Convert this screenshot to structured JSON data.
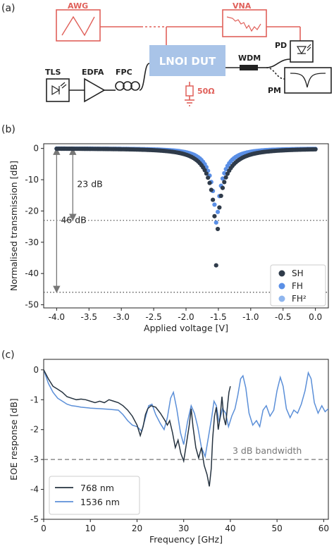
{
  "panels": {
    "a": "(a)",
    "b": "(b)",
    "c": "(c)"
  },
  "schematic": {
    "awg": "AWG",
    "vna": "VNA",
    "dut": "LNOI DUT",
    "tls": "TLS",
    "edfa": "EDFA",
    "fpc": "FPC",
    "wdm": "WDM",
    "pd": "PD",
    "pm": "PM",
    "load": "50Ω",
    "colors": {
      "rf": "#e0605a",
      "dut": "#a9c4e8",
      "optical": "#222222"
    }
  },
  "chart_data": [
    {
      "type": "scatter",
      "xlabel": "Applied voltage [V]",
      "ylabel": "Normalised transmission [dB]",
      "xlim": [
        -4.2,
        0.2
      ],
      "ylim": [
        -51,
        1.5
      ],
      "xticks": [
        "-4.0",
        "-3.5",
        "-3.0",
        "-2.5",
        "-2.0",
        "-1.5",
        "-1.0",
        "-0.5",
        "0.0"
      ],
      "yticks": [
        "0",
        "-10",
        "-20",
        "-30",
        "-40",
        "-50"
      ],
      "legend_position": "bottom-right",
      "series": [
        {
          "name": "SH",
          "color": "#2f3b4a",
          "params": {
            "v0": -1.53,
            "depth_db": 47,
            "g_left": 0.36,
            "g_right": 0.4,
            "v_start": -4.0,
            "v_end": 0.0,
            "n": 160
          }
        },
        {
          "name": "FH",
          "color": "#5a8fe6",
          "params": {
            "v0": -1.53,
            "depth_db": 24,
            "g_left": 0.27,
            "g_right": 0.28,
            "v_start": -4.0,
            "v_end": 0.0,
            "n": 160
          }
        },
        {
          "name": "FH²",
          "color": "#8fb6ee"
        }
      ],
      "annotations": [
        {
          "text": "23 dB",
          "from": 0,
          "to": -23,
          "x": -3.75
        },
        {
          "text": "46 dB",
          "from": 0,
          "to": -46,
          "x": -4.0
        }
      ],
      "reference_lines": [
        -23,
        -46
      ]
    },
    {
      "type": "line",
      "xlabel": "Frequency [GHz]",
      "ylabel": "EOE response [dB]",
      "xlim": [
        0,
        61
      ],
      "ylim": [
        -5,
        0.35
      ],
      "xticks": [
        "0",
        "10",
        "20",
        "30",
        "40",
        "50",
        "60"
      ],
      "yticks": [
        "0",
        "-1",
        "-2",
        "-3",
        "-4",
        "-5"
      ],
      "legend_position": "bottom-left",
      "reference_line": {
        "y": -3,
        "label": "3 dB bandwidth"
      },
      "series": [
        {
          "name": "768 nm",
          "color": "#263340",
          "points": [
            [
              0,
              0
            ],
            [
              1,
              -0.3
            ],
            [
              2,
              -0.55
            ],
            [
              3,
              -0.65
            ],
            [
              4,
              -0.75
            ],
            [
              5,
              -0.9
            ],
            [
              6,
              -0.95
            ],
            [
              7,
              -1.0
            ],
            [
              8,
              -0.98
            ],
            [
              9,
              -1.0
            ],
            [
              10,
              -1.05
            ],
            [
              11,
              -1.1
            ],
            [
              12,
              -1.05
            ],
            [
              13,
              -1.1
            ],
            [
              14,
              -1.0
            ],
            [
              15,
              -1.05
            ],
            [
              16,
              -1.1
            ],
            [
              17,
              -1.2
            ],
            [
              18,
              -1.35
            ],
            [
              19,
              -1.55
            ],
            [
              20,
              -1.85
            ],
            [
              20.7,
              -2.2
            ],
            [
              21.3,
              -1.9
            ],
            [
              21.8,
              -1.5
            ],
            [
              22.3,
              -1.3
            ],
            [
              23,
              -1.2
            ],
            [
              24,
              -1.25
            ],
            [
              25,
              -1.45
            ],
            [
              26,
              -1.7
            ],
            [
              26.5,
              -1.85
            ],
            [
              27,
              -1.7
            ],
            [
              27.6,
              -2.1
            ],
            [
              28.2,
              -2.6
            ],
            [
              28.8,
              -2.35
            ],
            [
              29.4,
              -2.8
            ],
            [
              30,
              -3.05
            ],
            [
              30.6,
              -2.45
            ],
            [
              31.2,
              -1.85
            ],
            [
              31.6,
              -1.3
            ],
            [
              32,
              -1.9
            ],
            [
              32.6,
              -2.6
            ],
            [
              33.2,
              -2.95
            ],
            [
              33.8,
              -2.6
            ],
            [
              34.4,
              -3.2
            ],
            [
              35,
              -3.5
            ],
            [
              35.5,
              -3.9
            ],
            [
              35.9,
              -3.3
            ],
            [
              36.2,
              -2.3
            ],
            [
              36.6,
              -1.55
            ],
            [
              37,
              -1.25
            ],
            [
              37.4,
              -2.0
            ],
            [
              37.8,
              -1.6
            ],
            [
              38.2,
              -0.9
            ],
            [
              38.6,
              -1.6
            ],
            [
              39,
              -1.85
            ],
            [
              39.4,
              -1.2
            ],
            [
              39.7,
              -0.75
            ],
            [
              40,
              -0.55
            ]
          ]
        },
        {
          "name": "1536 nm",
          "color": "#5b8fd8",
          "points": [
            [
              0,
              0
            ],
            [
              1,
              -0.45
            ],
            [
              2,
              -0.75
            ],
            [
              3,
              -0.95
            ],
            [
              4,
              -1.05
            ],
            [
              5,
              -1.15
            ],
            [
              6,
              -1.2
            ],
            [
              7,
              -1.22
            ],
            [
              8,
              -1.25
            ],
            [
              10,
              -1.28
            ],
            [
              12,
              -1.3
            ],
            [
              14,
              -1.32
            ],
            [
              16,
              -1.35
            ],
            [
              17,
              -1.5
            ],
            [
              18,
              -1.7
            ],
            [
              19,
              -1.85
            ],
            [
              20,
              -1.9
            ],
            [
              21,
              -2.05
            ],
            [
              21.8,
              -1.6
            ],
            [
              22.5,
              -1.2
            ],
            [
              23.2,
              -1.15
            ],
            [
              24,
              -1.5
            ],
            [
              25,
              -1.8
            ],
            [
              25.8,
              -2.0
            ],
            [
              26.5,
              -1.6
            ],
            [
              27.2,
              -0.95
            ],
            [
              27.8,
              -0.75
            ],
            [
              28.5,
              -1.3
            ],
            [
              29.3,
              -2.1
            ],
            [
              30,
              -2.5
            ],
            [
              30.8,
              -1.75
            ],
            [
              31.6,
              -1.2
            ],
            [
              32.3,
              -1.45
            ],
            [
              33,
              -1.9
            ],
            [
              33.8,
              -2.6
            ],
            [
              34.6,
              -2.9
            ],
            [
              35.4,
              -2.15
            ],
            [
              36,
              -1.6
            ],
            [
              36.5,
              -1.05
            ],
            [
              37,
              -1.2
            ],
            [
              37.6,
              -1.75
            ],
            [
              38.3,
              -1.3
            ],
            [
              39,
              -1.45
            ],
            [
              39.6,
              -1.9
            ],
            [
              40.3,
              -1.55
            ],
            [
              41,
              -1.3
            ],
            [
              41.6,
              -0.85
            ],
            [
              42.2,
              -0.3
            ],
            [
              42.7,
              -0.2
            ],
            [
              43.3,
              -0.6
            ],
            [
              44,
              -1.45
            ],
            [
              44.8,
              -1.85
            ],
            [
              45.6,
              -1.7
            ],
            [
              46.3,
              -1.9
            ],
            [
              47,
              -1.35
            ],
            [
              47.7,
              -1.2
            ],
            [
              48.5,
              -1.55
            ],
            [
              49.3,
              -1.35
            ],
            [
              50,
              -0.7
            ],
            [
              50.7,
              -0.25
            ],
            [
              51.3,
              -0.55
            ],
            [
              52,
              -1.3
            ],
            [
              52.8,
              -1.6
            ],
            [
              53.6,
              -1.35
            ],
            [
              54.4,
              -1.45
            ],
            [
              55.2,
              -1.15
            ],
            [
              56,
              -0.7
            ],
            [
              56.7,
              -0.1
            ],
            [
              57.3,
              -0.3
            ],
            [
              58,
              -1.1
            ],
            [
              58.8,
              -1.45
            ],
            [
              59.6,
              -1.2
            ],
            [
              60.3,
              -1.4
            ],
            [
              61,
              -1.3
            ]
          ]
        }
      ]
    }
  ]
}
